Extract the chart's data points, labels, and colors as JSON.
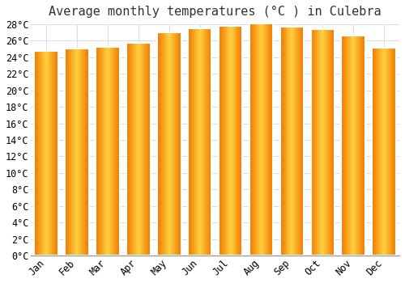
{
  "months": [
    "Jan",
    "Feb",
    "Mar",
    "Apr",
    "May",
    "Jun",
    "Jul",
    "Aug",
    "Sep",
    "Oct",
    "Nov",
    "Dec"
  ],
  "values": [
    24.8,
    25.1,
    25.3,
    25.8,
    27.0,
    27.5,
    27.8,
    28.1,
    27.7,
    27.4,
    26.6,
    25.2
  ],
  "bar_color_center": "#FFB300",
  "bar_color_edge": "#F07800",
  "title": "Average monthly temperatures (°C ) in Culebra",
  "ylim": [
    0,
    28
  ],
  "ytick_values": [
    0,
    2,
    4,
    6,
    8,
    10,
    12,
    14,
    16,
    18,
    20,
    22,
    24,
    26,
    28
  ],
  "background_color": "#FFFFFF",
  "grid_color": "#DDDDDD",
  "title_fontsize": 11,
  "tick_fontsize": 8.5,
  "font_family": "monospace"
}
